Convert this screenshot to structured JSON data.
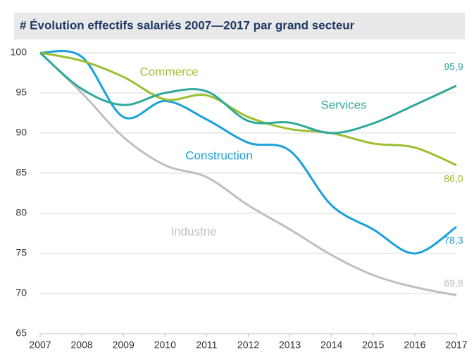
{
  "chart_data": {
    "type": "line",
    "title": "# Évolution effectifs salariés 2007—2017 par grand secteur",
    "x": [
      2007,
      2008,
      2009,
      2010,
      2011,
      2012,
      2013,
      2014,
      2015,
      2016,
      2017
    ],
    "xlim": [
      2007,
      2017
    ],
    "xticks": [
      2007,
      2008,
      2009,
      2010,
      2011,
      2012,
      2013,
      2014,
      2015,
      2016,
      2017
    ],
    "ylim": [
      65,
      100
    ],
    "yticks": [
      65,
      70,
      75,
      80,
      85,
      90,
      95,
      100
    ],
    "grid": true,
    "series": [
      {
        "name": "Services",
        "color": "#2ea89a",
        "values": [
          100,
          95.5,
          93.5,
          95,
          95.2,
          91.5,
          91.3,
          90,
          91.2,
          93.5,
          95.9
        ],
        "value_labels": [
          null,
          null,
          null,
          null,
          null,
          null,
          null,
          null,
          null,
          null,
          "95,9"
        ]
      },
      {
        "name": "Commerce",
        "color": "#9bbf2f",
        "values": [
          100,
          99,
          97,
          94.2,
          94.7,
          92,
          90.5,
          90,
          88.7,
          88.2,
          86.0
        ],
        "value_labels": [
          null,
          null,
          null,
          null,
          null,
          null,
          null,
          null,
          null,
          null,
          "86,0"
        ]
      },
      {
        "name": "Construction",
        "color": "#1aa0dc",
        "values": [
          100,
          99.5,
          92,
          94,
          91.7,
          88.8,
          87.8,
          81,
          78,
          75,
          78.3
        ],
        "value_labels": [
          null,
          null,
          null,
          null,
          null,
          null,
          null,
          null,
          null,
          null,
          "78,3"
        ]
      },
      {
        "name": "Industrie",
        "color": "#bfbfbf",
        "values": [
          100,
          95,
          89.5,
          86,
          84.5,
          81,
          78,
          74.8,
          72.3,
          70.8,
          69.8
        ],
        "value_labels": [
          null,
          null,
          null,
          null,
          null,
          null,
          null,
          null,
          null,
          null,
          "69,8"
        ]
      }
    ]
  }
}
